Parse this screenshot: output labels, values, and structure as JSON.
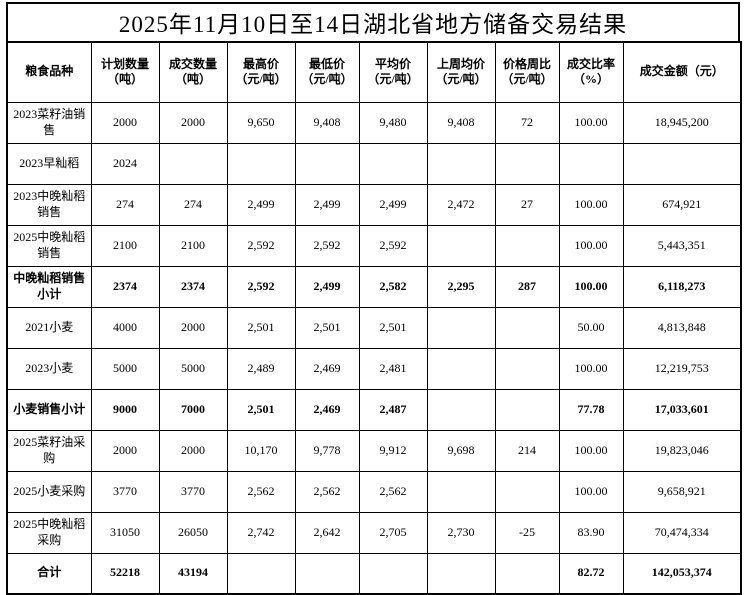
{
  "title": "2025年11月10日至14日湖北省地方储备交易结果",
  "table": {
    "headers": [
      {
        "line1": "粮食品种",
        "line2": ""
      },
      {
        "line1": "计划数量",
        "line2": "（吨）"
      },
      {
        "line1": "成交数量",
        "line2": "（吨）"
      },
      {
        "line1": "最高价",
        "line2": "（元/吨）"
      },
      {
        "line1": "最低价",
        "line2": "（元/吨）"
      },
      {
        "line1": "平均价",
        "line2": "（元/吨）"
      },
      {
        "line1": "上周均价",
        "line2": "（元/吨）"
      },
      {
        "line1": "价格周比",
        "line2": "（元/吨）"
      },
      {
        "line1": "成交比率",
        "line2": "（%）"
      },
      {
        "line1": "成交金额（元）",
        "line2": ""
      }
    ],
    "rows": [
      {
        "name": "2023菜籽油销售",
        "bold": false,
        "cells": [
          "2000",
          "2000",
          "9,650",
          "9,408",
          "9,480",
          "9,408",
          "72",
          "100.00",
          "18,945,200"
        ]
      },
      {
        "name": "2023早籼稻",
        "bold": false,
        "cells": [
          "2024",
          "",
          "",
          "",
          "",
          "",
          "",
          "",
          ""
        ]
      },
      {
        "name": "2023中晚籼稻销售",
        "bold": false,
        "cells": [
          "274",
          "274",
          "2,499",
          "2,499",
          "2,499",
          "2,472",
          "27",
          "100.00",
          "674,921"
        ]
      },
      {
        "name": "2025中晚籼稻销售",
        "bold": false,
        "cells": [
          "2100",
          "2100",
          "2,592",
          "2,592",
          "2,592",
          "",
          "",
          "100.00",
          "5,443,351"
        ]
      },
      {
        "name": "中晚籼稻销售小计",
        "bold": true,
        "cells": [
          "2374",
          "2374",
          "2,592",
          "2,499",
          "2,582",
          "2,295",
          "287",
          "100.00",
          "6,118,273"
        ]
      },
      {
        "name": "2021小麦",
        "bold": false,
        "cells": [
          "4000",
          "2000",
          "2,501",
          "2,501",
          "2,501",
          "",
          "",
          "50.00",
          "4,813,848"
        ]
      },
      {
        "name": "2023小麦",
        "bold": false,
        "cells": [
          "5000",
          "5000",
          "2,489",
          "2,469",
          "2,481",
          "",
          "",
          "100.00",
          "12,219,753"
        ]
      },
      {
        "name": "小麦销售小计",
        "bold": true,
        "cells": [
          "9000",
          "7000",
          "2,501",
          "2,469",
          "2,487",
          "",
          "",
          "77.78",
          "17,033,601"
        ]
      },
      {
        "name": "2025菜籽油采购",
        "bold": false,
        "cells": [
          "2000",
          "2000",
          "10,170",
          "9,778",
          "9,912",
          "9,698",
          "214",
          "100.00",
          "19,823,046"
        ]
      },
      {
        "name": "2025小麦采购",
        "bold": false,
        "cells": [
          "3770",
          "3770",
          "2,562",
          "2,562",
          "2,562",
          "",
          "",
          "100.00",
          "9,658,921"
        ]
      },
      {
        "name": "2025中晚籼稻采购",
        "bold": false,
        "cells": [
          "31050",
          "26050",
          "2,742",
          "2,642",
          "2,705",
          "2,730",
          "-25",
          "83.90",
          "70,474,334"
        ]
      },
      {
        "name": "合计",
        "bold": true,
        "cells": [
          "52218",
          "43194",
          "",
          "",
          "",
          "",
          "",
          "82.72",
          "142,053,374"
        ]
      }
    ]
  }
}
